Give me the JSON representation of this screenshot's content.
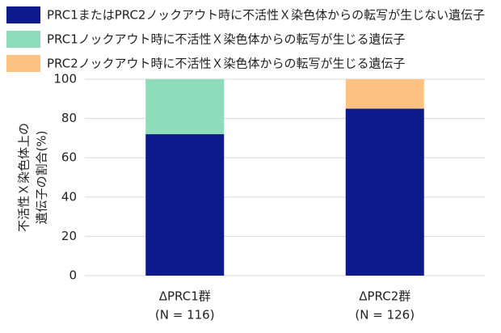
{
  "chart_data": {
    "type": "stacked_bar",
    "categories": [
      [
        "ΔPRC1群",
        "(N = 116)"
      ],
      [
        "ΔPRC2群",
        "(N = 126)"
      ]
    ],
    "series": [
      {
        "name": "PRC1またはPRC2ノックアウト時に不活性Ｘ染色体からの転写が生じない遺伝子",
        "color": "#0c1a8c",
        "values": [
          72,
          85
        ]
      },
      {
        "name": "PRC1ノックアウト時に不活性Ｘ染色体からの転写が生じる遺伝子",
        "color": "#8edcb9",
        "values": [
          28,
          null
        ]
      },
      {
        "name": "PRC2ノックアウト時に不活性Ｘ染色体からの転写が生じる遺伝子",
        "color": "#fdc282",
        "values": [
          null,
          15
        ]
      }
    ],
    "ylabel": [
      "不活性Ｘ染色体上の",
      "遺伝子の割合(%)"
    ],
    "ylim": [
      0,
      100
    ],
    "yticks": [
      0,
      20,
      40,
      60,
      80,
      100
    ],
    "grid": true
  }
}
